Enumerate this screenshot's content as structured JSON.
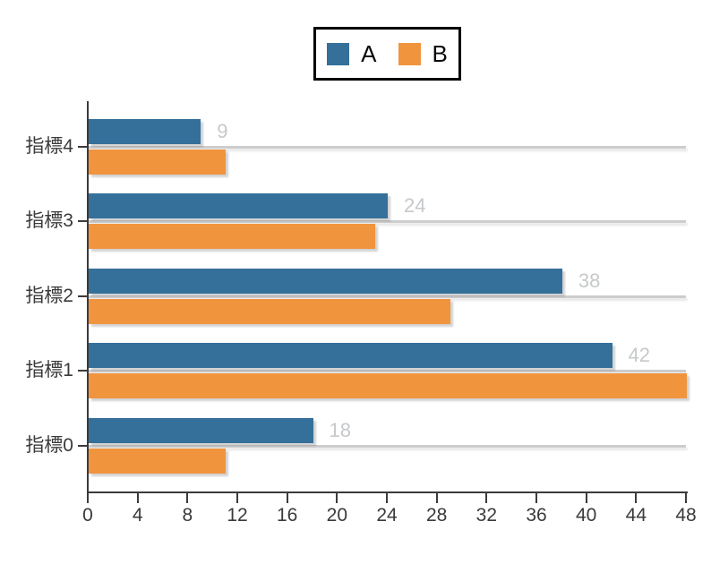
{
  "legend": {
    "items": [
      {
        "label": "A",
        "color": "#35709B"
      },
      {
        "label": "B",
        "color": "#F0943E"
      }
    ]
  },
  "chart_data": {
    "type": "bar",
    "orientation": "horizontal",
    "title": "",
    "xlabel": "",
    "ylabel": "",
    "categories": [
      "指標4",
      "指標3",
      "指標2",
      "指標1",
      "指標0"
    ],
    "series": [
      {
        "name": "A",
        "color": "#35709B",
        "values": [
          9,
          24,
          38,
          42,
          18
        ],
        "value_labels": [
          "9",
          "24",
          "38",
          "42",
          "18"
        ]
      },
      {
        "name": "B",
        "color": "#F0943E",
        "values": [
          11,
          23,
          29,
          48,
          11
        ],
        "value_labels": null
      }
    ],
    "xlim": [
      0,
      48
    ],
    "x_ticks": [
      0,
      4,
      8,
      12,
      16,
      20,
      24,
      28,
      32,
      36,
      40,
      44,
      48
    ],
    "grid": "category-gridlines",
    "legend_position": "top-center",
    "value_label_color": "#c6c9cb",
    "axis_color": "#3b3b3b",
    "gridline_color": "#cdcdcd"
  }
}
